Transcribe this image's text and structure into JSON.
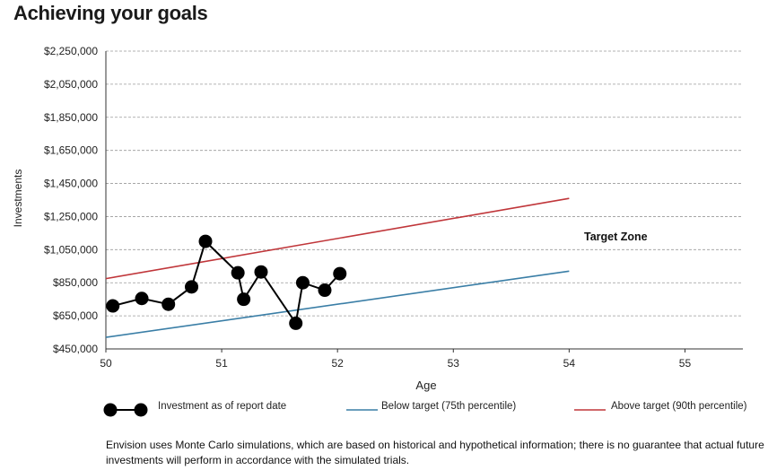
{
  "title": "Achieving your goals",
  "chart_data": {
    "type": "line",
    "xlabel": "Age",
    "ylabel": "Investments",
    "xlim": [
      50,
      55.5
    ],
    "ylim": [
      450000,
      2250000
    ],
    "x_ticks": [
      50,
      51,
      52,
      53,
      54,
      55
    ],
    "x_tick_labels": [
      "50",
      "51",
      "52",
      "53",
      "54",
      "55"
    ],
    "y_ticks": [
      450000,
      650000,
      850000,
      1050000,
      1250000,
      1450000,
      1650000,
      1850000,
      2050000,
      2250000
    ],
    "y_tick_labels": [
      "$450,000",
      "$650,000",
      "$850,000",
      "$1,050,000",
      "$1,250,000",
      "$1,450,000",
      "$1,650,000",
      "$1,850,000",
      "$2,050,000",
      "$2,250,000"
    ],
    "grid": "horizontal dashed",
    "annotation": "Target Zone",
    "series": [
      {
        "name": "Investment as of report date",
        "color": "#000000",
        "style": "line-with-markers",
        "points": [
          [
            50.06,
            710000
          ],
          [
            50.31,
            755000
          ],
          [
            50.54,
            720000
          ],
          [
            50.74,
            825000
          ],
          [
            50.86,
            1100000
          ],
          [
            51.14,
            910000
          ],
          [
            51.19,
            750000
          ],
          [
            51.34,
            915000
          ],
          [
            51.64,
            605000
          ],
          [
            51.7,
            850000
          ],
          [
            51.89,
            805000
          ],
          [
            52.02,
            905000
          ]
        ]
      },
      {
        "name": "Below target (75th percentile)",
        "color": "#3a7ea6",
        "style": "line",
        "points": [
          [
            50,
            520000
          ],
          [
            54,
            920000
          ]
        ]
      },
      {
        "name": "Above target (90th percentile)",
        "color": "#c0363a",
        "style": "line",
        "points": [
          [
            50,
            875000
          ],
          [
            54,
            1360000
          ]
        ]
      }
    ]
  },
  "footnote": "Envision uses Monte Carlo simulations, which are based on historical and hypothetical information; there is no guarantee that actual future investments will perform in accordance with the simulated trials."
}
